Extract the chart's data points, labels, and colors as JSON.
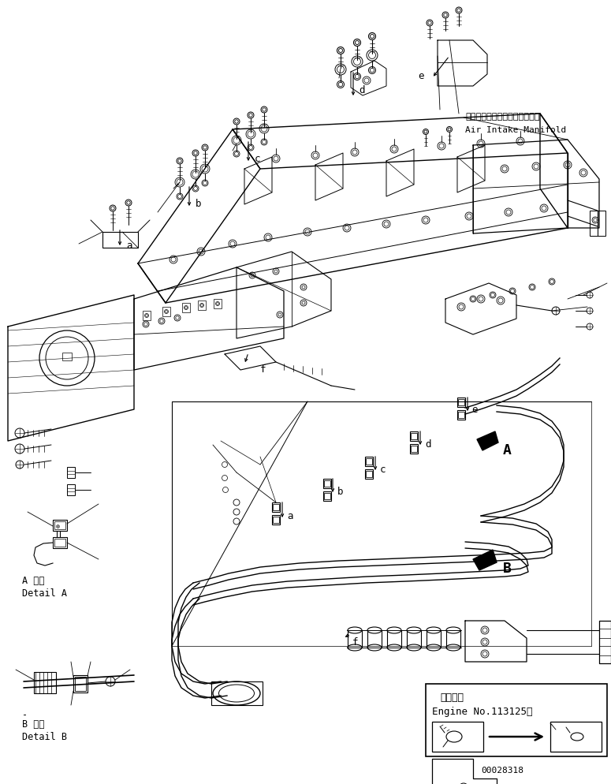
{
  "bg_color": "#ffffff",
  "line_color": "#000000",
  "text_color": "#000000",
  "air_intake_jp": "エアーインテークマニホールド",
  "air_intake_en": "Air Intake Manifold",
  "detail_A_jp": "A 詳細",
  "detail_A_en": "Detail A",
  "detail_B_jp": "B 詳細",
  "detail_B_en": "Detail B",
  "engine_no_jp": "適用号機",
  "engine_no_en": "Engine No.113125～",
  "part_number": "00028318",
  "fig_width": 7.75,
  "fig_height": 9.95,
  "dpi": 100
}
